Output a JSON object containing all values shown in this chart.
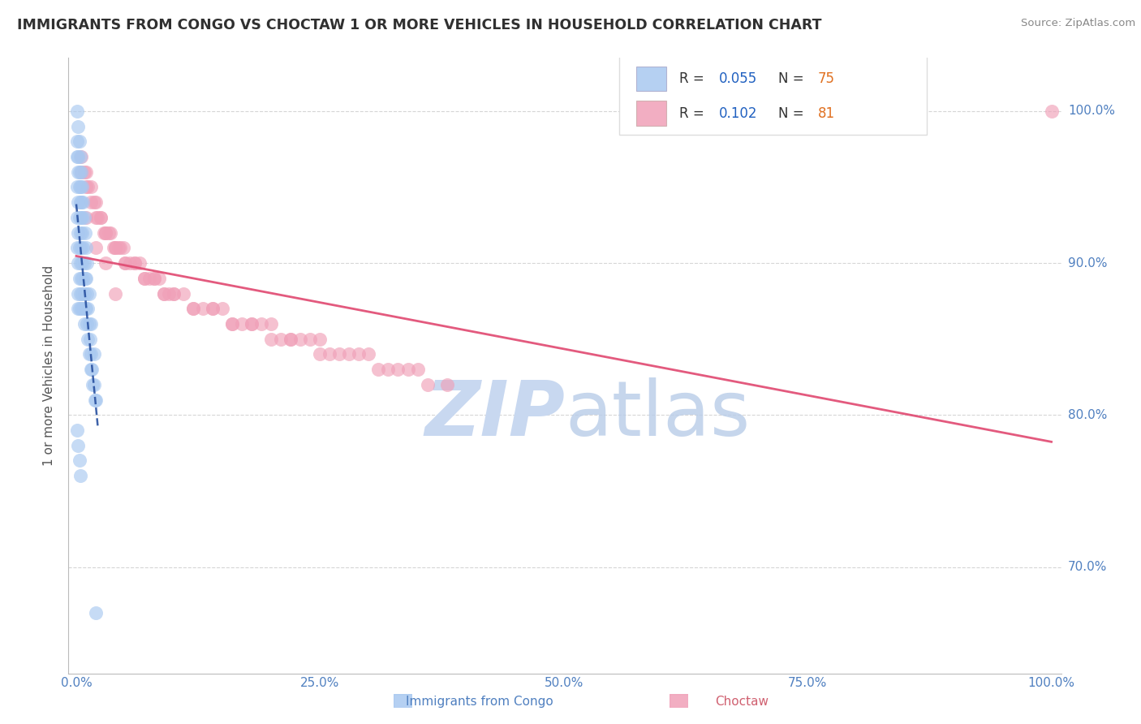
{
  "title": "IMMIGRANTS FROM CONGO VS CHOCTAW 1 OR MORE VEHICLES IN HOUSEHOLD CORRELATION CHART",
  "source": "Source: ZipAtlas.com",
  "ylabel": "1 or more Vehicles in Household",
  "legend_blue_R": "0.055",
  "legend_blue_N": "75",
  "legend_pink_R": "0.102",
  "legend_pink_N": "81",
  "blue_color": "#A8C8F0",
  "pink_color": "#F0A0B8",
  "blue_line_color": "#2850A0",
  "pink_line_color": "#E04870",
  "title_color": "#303030",
  "axis_label_color": "#5080C0",
  "legend_R_color": "#2060C0",
  "legend_N_color": "#E07020",
  "watermark_color": "#C8D8F0",
  "background_color": "#FFFFFF",
  "grid_color": "#CCCCCC",
  "figsize": [
    14.06,
    8.92
  ],
  "dpi": 100,
  "blue_x": [
    0.001,
    0.001,
    0.001,
    0.001,
    0.002,
    0.002,
    0.002,
    0.002,
    0.002,
    0.002,
    0.003,
    0.003,
    0.003,
    0.003,
    0.003,
    0.004,
    0.004,
    0.004,
    0.004,
    0.005,
    0.005,
    0.005,
    0.005,
    0.006,
    0.006,
    0.006,
    0.007,
    0.007,
    0.007,
    0.008,
    0.008,
    0.008,
    0.009,
    0.009,
    0.01,
    0.01,
    0.011,
    0.011,
    0.012,
    0.012,
    0.013,
    0.013,
    0.014,
    0.015,
    0.015,
    0.016,
    0.017,
    0.018,
    0.019,
    0.02,
    0.001,
    0.001,
    0.002,
    0.002,
    0.003,
    0.003,
    0.004,
    0.004,
    0.005,
    0.005,
    0.006,
    0.006,
    0.007,
    0.008,
    0.009,
    0.01,
    0.011,
    0.013,
    0.015,
    0.018,
    0.001,
    0.002,
    0.003,
    0.004,
    0.02
  ],
  "blue_y": [
    0.97,
    0.95,
    0.93,
    0.91,
    0.96,
    0.94,
    0.92,
    0.9,
    0.88,
    0.87,
    0.95,
    0.93,
    0.91,
    0.89,
    0.87,
    0.94,
    0.92,
    0.9,
    0.88,
    0.93,
    0.91,
    0.89,
    0.87,
    0.92,
    0.9,
    0.88,
    0.91,
    0.89,
    0.87,
    0.9,
    0.88,
    0.86,
    0.89,
    0.87,
    0.89,
    0.87,
    0.88,
    0.86,
    0.87,
    0.85,
    0.86,
    0.84,
    0.85,
    0.84,
    0.83,
    0.83,
    0.82,
    0.82,
    0.81,
    0.81,
    1.0,
    0.98,
    0.99,
    0.97,
    0.98,
    0.96,
    0.97,
    0.95,
    0.96,
    0.94,
    0.95,
    0.93,
    0.94,
    0.93,
    0.92,
    0.91,
    0.9,
    0.88,
    0.86,
    0.84,
    0.79,
    0.78,
    0.77,
    0.76,
    0.67
  ],
  "pink_x": [
    0.005,
    0.008,
    0.01,
    0.012,
    0.015,
    0.018,
    0.02,
    0.022,
    0.025,
    0.028,
    0.03,
    0.033,
    0.035,
    0.038,
    0.04,
    0.043,
    0.045,
    0.048,
    0.05,
    0.055,
    0.06,
    0.065,
    0.07,
    0.075,
    0.08,
    0.085,
    0.09,
    0.095,
    0.1,
    0.11,
    0.12,
    0.13,
    0.14,
    0.15,
    0.16,
    0.17,
    0.18,
    0.19,
    0.2,
    0.21,
    0.22,
    0.23,
    0.24,
    0.25,
    0.26,
    0.27,
    0.28,
    0.29,
    0.3,
    0.31,
    0.32,
    0.33,
    0.34,
    0.35,
    0.36,
    0.005,
    0.01,
    0.015,
    0.02,
    0.025,
    0.03,
    0.04,
    0.05,
    0.06,
    0.07,
    0.08,
    0.09,
    0.1,
    0.12,
    0.14,
    0.16,
    0.18,
    0.2,
    0.22,
    0.25,
    0.01,
    0.02,
    0.03,
    0.04,
    0.38,
    1.0
  ],
  "pink_y": [
    0.97,
    0.96,
    0.96,
    0.95,
    0.95,
    0.94,
    0.94,
    0.93,
    0.93,
    0.92,
    0.92,
    0.92,
    0.92,
    0.91,
    0.91,
    0.91,
    0.91,
    0.91,
    0.9,
    0.9,
    0.9,
    0.9,
    0.89,
    0.89,
    0.89,
    0.89,
    0.88,
    0.88,
    0.88,
    0.88,
    0.87,
    0.87,
    0.87,
    0.87,
    0.86,
    0.86,
    0.86,
    0.86,
    0.86,
    0.85,
    0.85,
    0.85,
    0.85,
    0.85,
    0.84,
    0.84,
    0.84,
    0.84,
    0.84,
    0.83,
    0.83,
    0.83,
    0.83,
    0.83,
    0.82,
    0.96,
    0.95,
    0.94,
    0.93,
    0.93,
    0.92,
    0.91,
    0.9,
    0.9,
    0.89,
    0.89,
    0.88,
    0.88,
    0.87,
    0.87,
    0.86,
    0.86,
    0.85,
    0.85,
    0.84,
    0.93,
    0.91,
    0.9,
    0.88,
    0.82,
    1.0
  ]
}
